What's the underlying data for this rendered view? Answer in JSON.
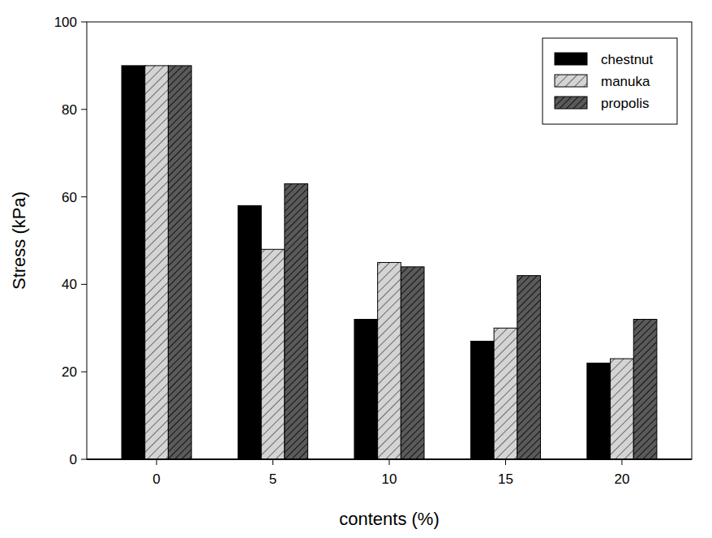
{
  "chart_data": {
    "type": "bar",
    "x_label": "contents (%)",
    "y_label": "Stress (kPa)",
    "categories": [
      0,
      5,
      10,
      15,
      20
    ],
    "series": [
      {
        "name": "chestnut",
        "color": "#000000",
        "values": [
          90,
          58,
          32,
          27,
          22
        ]
      },
      {
        "name": "manuka",
        "color": "#d4d4d4",
        "values": [
          90,
          48,
          45,
          30,
          23
        ]
      },
      {
        "name": "propolis",
        "color": "#5a5a5a",
        "values": [
          90,
          63,
          44,
          42,
          32
        ]
      }
    ],
    "ylim": [
      0,
      100
    ],
    "yticks": [
      0,
      20,
      40,
      60,
      80,
      100
    ],
    "grid": false,
    "legend": "upper right"
  }
}
